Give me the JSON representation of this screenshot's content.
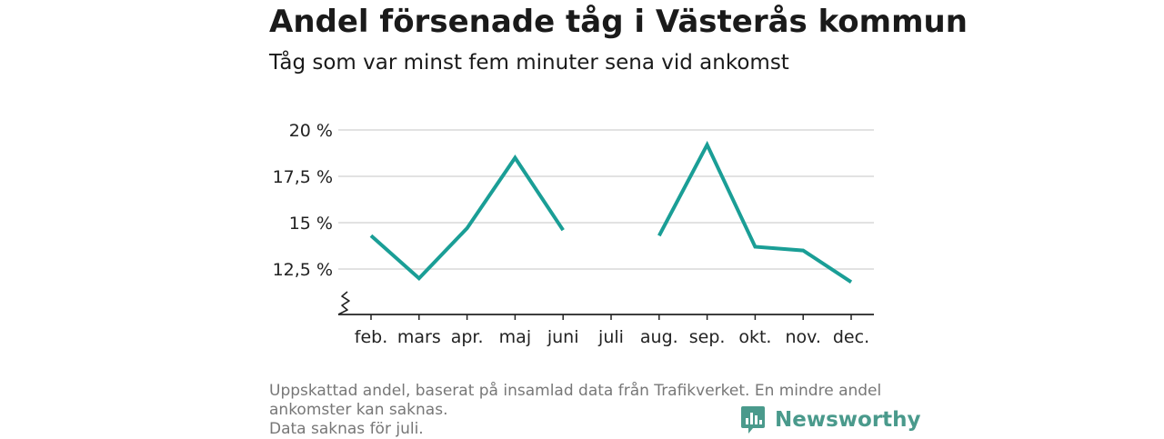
{
  "title": "Andel försenade tåg i Västerås kommun",
  "subtitle": "Tåg som var minst fem minuter sena vid ankomst",
  "footnote": {
    "line1": "Uppskattad andel, baserat på insamlad data från Trafikverket. En mindre andel",
    "line2": "ankomster kan saknas.",
    "line3": "Data saknas för juli."
  },
  "brand": {
    "name": "Newsworthy",
    "color": "#4a9a8c"
  },
  "colors": {
    "line": "#1a9e96",
    "grid": "#d9d9d9",
    "axis": "#222222"
  },
  "chart_data": {
    "type": "line",
    "title": "Andel försenade tåg i Västerås kommun",
    "subtitle": "Tåg som var minst fem minuter sena vid ankomst",
    "xlabel": "",
    "ylabel": "",
    "categories": [
      "feb.",
      "mars",
      "apr.",
      "maj",
      "juni",
      "juli",
      "aug.",
      "sep.",
      "okt.",
      "nov.",
      "dec."
    ],
    "values": [
      14.3,
      12.0,
      14.7,
      18.5,
      14.6,
      null,
      14.3,
      19.2,
      13.7,
      13.5,
      11.8
    ],
    "y_ticks": [
      12.5,
      15,
      17.5,
      20
    ],
    "y_tick_labels": [
      "12,5 %",
      "15 %",
      "17,5 %",
      "20 %"
    ],
    "ylim": [
      10,
      20
    ],
    "axis_break": true,
    "grid": true,
    "legend": "none"
  }
}
